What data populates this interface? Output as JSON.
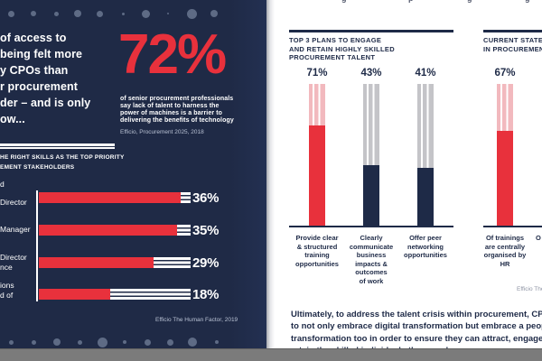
{
  "left_page": {
    "intro_lines": [
      "of access to",
      "being felt more",
      "y CPOs than",
      "r procurement",
      "der – and is only",
      "ow..."
    ],
    "stat_value": "72%",
    "stat_desc_lines": [
      "of senior procurement professionals",
      "say lack of talent to harness the",
      "power of machines is a barrier to",
      "delivering the benefits of technology"
    ],
    "stat_source": "Efficio, Procurement 2025, 2018",
    "section_title_lines": [
      "HE RIGHT SKILLS AS THE TOP PRIORITY",
      "EMENT STAKEHOLDERS"
    ],
    "chart_source": "Efficio The Human Factor, 2019",
    "rows": [
      {
        "label_fragments": [
          "d",
          "Director"
        ],
        "value": 36,
        "display": "36%"
      },
      {
        "label_fragments": [
          "Manager"
        ],
        "value": 35,
        "display": "35%"
      },
      {
        "label_fragments": [
          "Director",
          "nce"
        ],
        "value": 29,
        "display": "29%"
      },
      {
        "label_fragments": [
          "ions",
          "d of"
        ],
        "value": 18,
        "display": "18%"
      }
    ]
  },
  "right_page": {
    "top_cropped_fragments": [
      "g",
      "p",
      "g",
      "g"
    ],
    "plans_chart": {
      "title_lines": [
        "TOP 3 PLANS TO ENGAGE",
        "AND RETAIN HIGHLY SKILLED",
        "PROCUREMENT TALENT"
      ],
      "columns": [
        {
          "pct": "71%",
          "value": 71,
          "color_key": "red",
          "label_lines": [
            "Provide clear",
            "& structured",
            "training",
            "opportunities"
          ]
        },
        {
          "pct": "43%",
          "value": 43,
          "color_key": "navy",
          "label_lines": [
            "Clearly",
            "communicate",
            "business",
            "impacts &",
            "outcomes",
            "of work"
          ]
        },
        {
          "pct": "41%",
          "value": 41,
          "color_key": "navy",
          "label_lines": [
            "Offer peer",
            "networking",
            "opportunities"
          ]
        }
      ]
    },
    "state_chart": {
      "title_lines": [
        "CURRENT STATE O",
        "IN PROCUREMENT"
      ],
      "columns": [
        {
          "pct": "67%",
          "value": 67,
          "color_key": "red",
          "label_lines": [
            "Of trainings",
            "are centrally",
            "organised by",
            "HR"
          ]
        }
      ],
      "next_label_fragment": "O",
      "source_fragment": "Efficio The H"
    },
    "paragraph_lines": [
      "Ultimately, to address the talent crisis within procurement, CPOs",
      "to not only embrace digital transformation but embrace a people",
      "transformation too in order to ensure they can attract, engage and",
      "retain the skilled individuals they need"
    ]
  },
  "colors": {
    "navy": "#1e2a47",
    "page_navy": "#1f2a46",
    "red": "#e8313c",
    "pink": "#f2b9be",
    "gray": "#c4c4c8",
    "dot": "#5e6b85",
    "band_gray": "#7b7b7b",
    "white": "#ffffff"
  },
  "chart_data": [
    {
      "type": "bar",
      "orientation": "horizontal",
      "title": "…HE RIGHT SKILLS AS THE TOP PRIORITY …EMENT STAKEHOLDERS (cropped at left edge)",
      "categories": [
        "…d / …Director",
        "…Manager",
        "…Director / …nce",
        "…ions / …d of"
      ],
      "values": [
        36,
        35,
        29,
        18
      ],
      "xlim": [
        0,
        38.5
      ],
      "bar_color": "#e8313c",
      "remainder_style": "white horizontal stripes",
      "source": "Efficio The Human Factor, 2019"
    },
    {
      "type": "bar",
      "orientation": "vertical",
      "title": "TOP 3 PLANS TO ENGAGE AND RETAIN HIGHLY SKILLED PROCUREMENT TALENT",
      "categories": [
        "Provide clear & structured training opportunities",
        "Clearly communicate business impacts & outcomes of work",
        "Offer peer networking opportunities"
      ],
      "values": [
        71,
        43,
        41
      ],
      "ylim": [
        0,
        100
      ],
      "bar_colors": [
        "#e8313c",
        "#1e2a47",
        "#1e2a47"
      ]
    },
    {
      "type": "bar",
      "orientation": "vertical",
      "title": "CURRENT STATE O… IN PROCUREMENT… (cropped at right edge)",
      "categories": [
        "Of trainings are centrally organised by HR"
      ],
      "values": [
        67
      ],
      "ylim": [
        0,
        100
      ],
      "bar_colors": [
        "#e8313c"
      ],
      "source": "Efficio The H… (cropped)"
    }
  ]
}
